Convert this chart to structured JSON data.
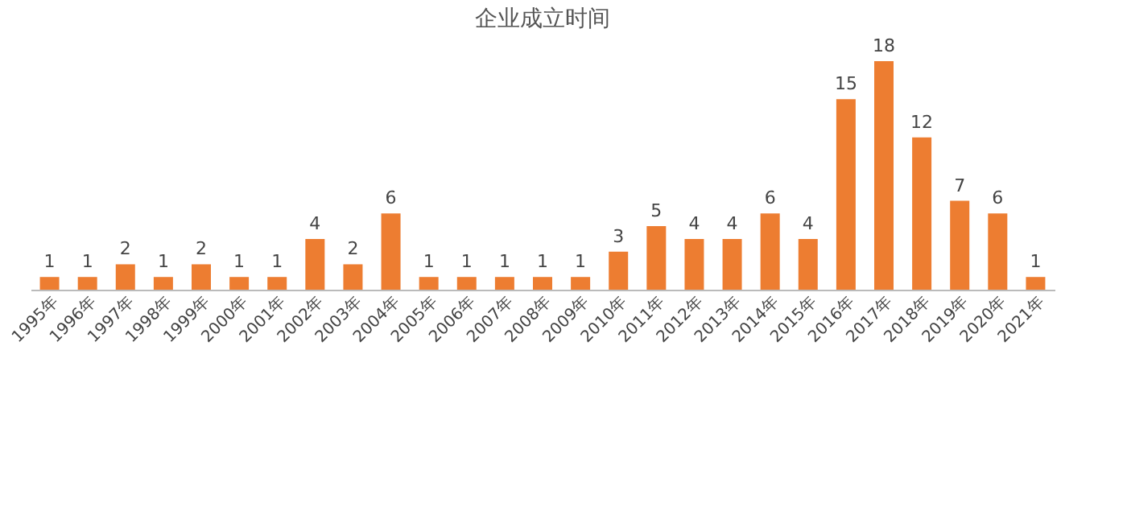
{
  "chart_data": {
    "type": "bar",
    "title": "企业成立时间",
    "categories": [
      "1995年",
      "1996年",
      "1997年",
      "1998年",
      "1999年",
      "2000年",
      "2001年",
      "2002年",
      "2003年",
      "2004年",
      "2005年",
      "2006年",
      "2007年",
      "2008年",
      "2009年",
      "2010年",
      "2011年",
      "2012年",
      "2013年",
      "2014年",
      "2015年",
      "2016年",
      "2017年",
      "2018年",
      "2019年",
      "2020年",
      "2021年"
    ],
    "values": [
      1,
      1,
      2,
      1,
      2,
      1,
      1,
      4,
      2,
      6,
      1,
      1,
      1,
      1,
      1,
      3,
      5,
      4,
      4,
      6,
      4,
      15,
      18,
      12,
      7,
      6,
      1
    ],
    "color": "#ed7d31",
    "data_labels": true,
    "grid": false
  }
}
